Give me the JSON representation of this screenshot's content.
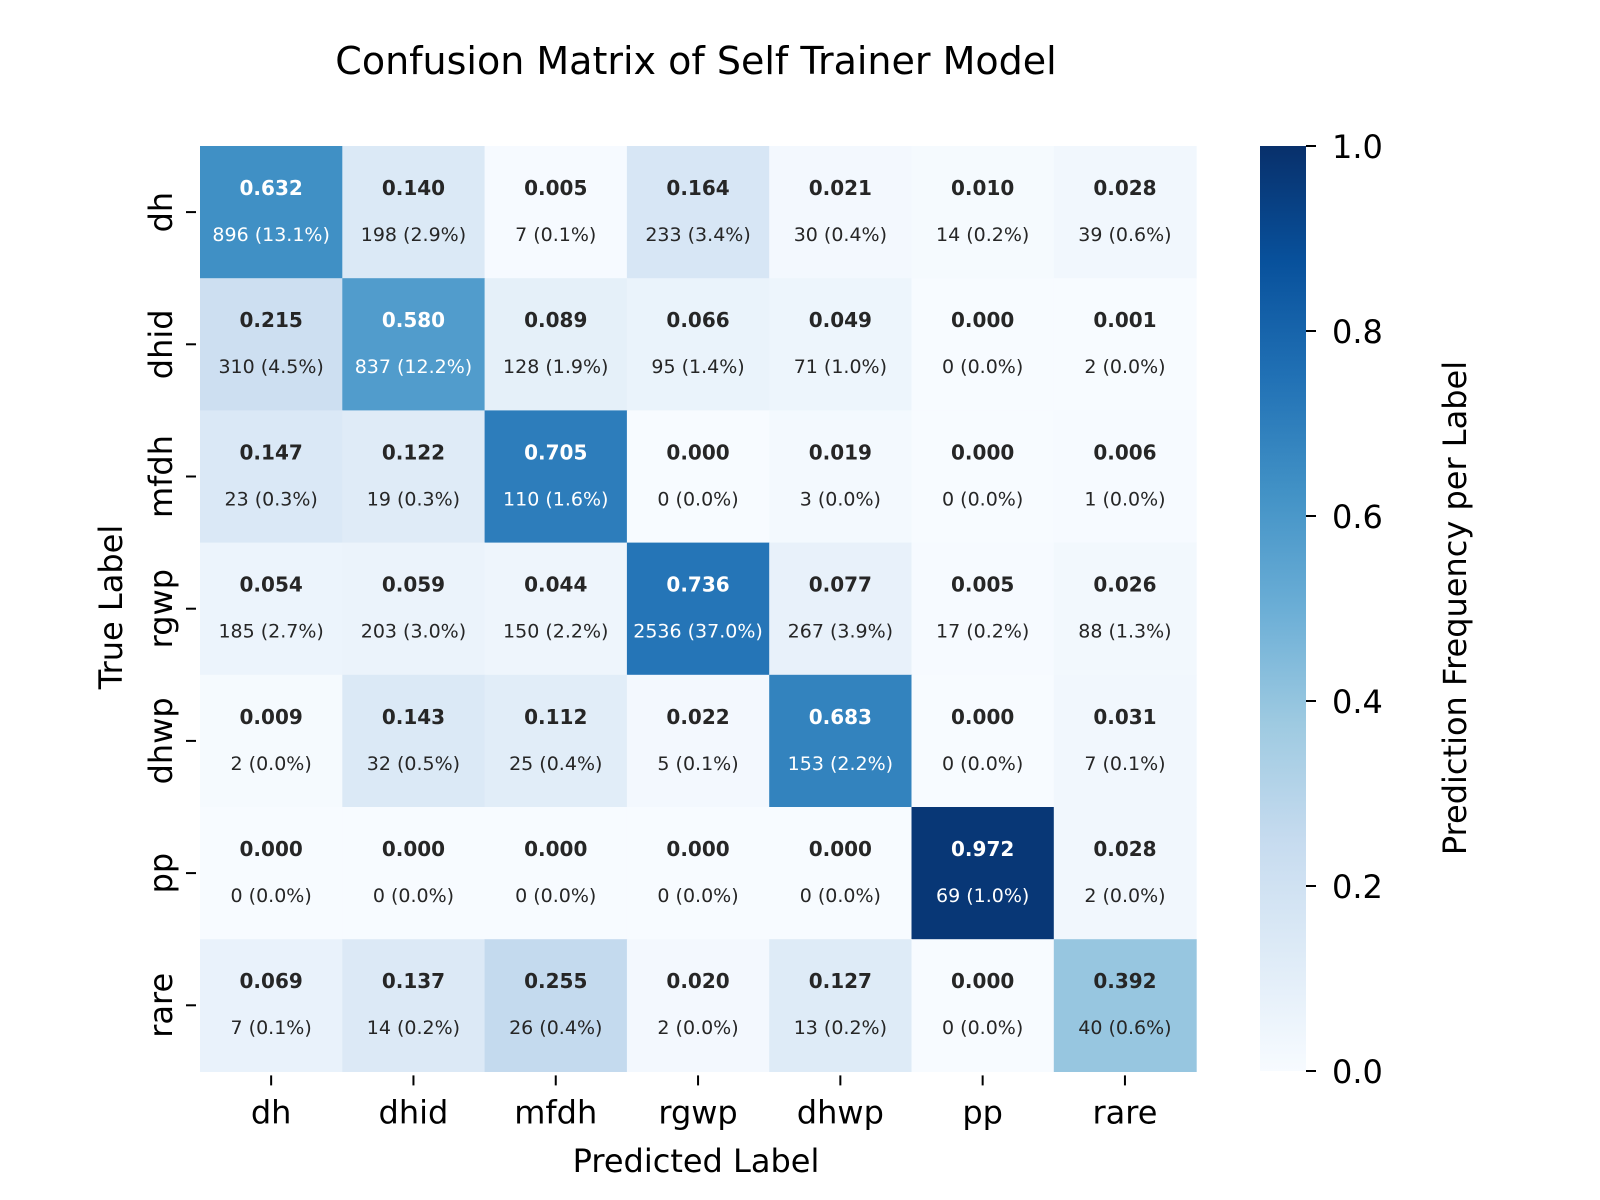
{
  "chart_data": {
    "type": "heatmap",
    "title": "Confusion Matrix of Self Trainer Model",
    "xlabel": "Predicted Label",
    "ylabel": "True Label",
    "x_categories": [
      "dh",
      "dhid",
      "mfdh",
      "rgwp",
      "dhwp",
      "pp",
      "rare"
    ],
    "y_categories": [
      "dh",
      "dhid",
      "mfdh",
      "rgwp",
      "dhwp",
      "pp",
      "rare"
    ],
    "values": [
      [
        0.632,
        0.14,
        0.005,
        0.164,
        0.021,
        0.01,
        0.028
      ],
      [
        0.215,
        0.58,
        0.089,
        0.066,
        0.049,
        0.0,
        0.001
      ],
      [
        0.147,
        0.122,
        0.705,
        0.0,
        0.019,
        0.0,
        0.006
      ],
      [
        0.054,
        0.059,
        0.044,
        0.736,
        0.077,
        0.005,
        0.026
      ],
      [
        0.009,
        0.143,
        0.112,
        0.022,
        0.683,
        0.0,
        0.031
      ],
      [
        0.0,
        0.0,
        0.0,
        0.0,
        0.0,
        0.972,
        0.028
      ],
      [
        0.069,
        0.137,
        0.255,
        0.02,
        0.127,
        0.0,
        0.392
      ]
    ],
    "value_labels": [
      [
        "0.632",
        "0.140",
        "0.005",
        "0.164",
        "0.021",
        "0.010",
        "0.028"
      ],
      [
        "0.215",
        "0.580",
        "0.089",
        "0.066",
        "0.049",
        "0.000",
        "0.001"
      ],
      [
        "0.147",
        "0.122",
        "0.705",
        "0.000",
        "0.019",
        "0.000",
        "0.006"
      ],
      [
        "0.054",
        "0.059",
        "0.044",
        "0.736",
        "0.077",
        "0.005",
        "0.026"
      ],
      [
        "0.009",
        "0.143",
        "0.112",
        "0.022",
        "0.683",
        "0.000",
        "0.031"
      ],
      [
        "0.000",
        "0.000",
        "0.000",
        "0.000",
        "0.000",
        "0.972",
        "0.028"
      ],
      [
        "0.069",
        "0.137",
        "0.255",
        "0.020",
        "0.127",
        "0.000",
        "0.392"
      ]
    ],
    "count_labels": [
      [
        "896 (13.1%)",
        "198 (2.9%)",
        "7 (0.1%)",
        "233 (3.4%)",
        "30 (0.4%)",
        "14 (0.2%)",
        "39 (0.6%)"
      ],
      [
        "310 (4.5%)",
        "837 (12.2%)",
        "128 (1.9%)",
        "95 (1.4%)",
        "71 (1.0%)",
        "0 (0.0%)",
        "2 (0.0%)"
      ],
      [
        "23 (0.3%)",
        "19 (0.3%)",
        "110 (1.6%)",
        "0 (0.0%)",
        "3 (0.0%)",
        "0 (0.0%)",
        "1 (0.0%)"
      ],
      [
        "185 (2.7%)",
        "203 (3.0%)",
        "150 (2.2%)",
        "2536 (37.0%)",
        "267 (3.9%)",
        "17 (0.2%)",
        "88 (1.3%)"
      ],
      [
        "2 (0.0%)",
        "32 (0.5%)",
        "25 (0.4%)",
        "5 (0.1%)",
        "153 (2.2%)",
        "0 (0.0%)",
        "7 (0.1%)"
      ],
      [
        "0 (0.0%)",
        "0 (0.0%)",
        "0 (0.0%)",
        "0 (0.0%)",
        "0 (0.0%)",
        "69 (1.0%)",
        "2 (0.0%)"
      ],
      [
        "7 (0.1%)",
        "14 (0.2%)",
        "26 (0.4%)",
        "2 (0.0%)",
        "13 (0.2%)",
        "0 (0.0%)",
        "40 (0.6%)"
      ]
    ],
    "colorbar": {
      "label": "Prediction Frequency per Label",
      "range": [
        0.0,
        1.0
      ],
      "ticks": [
        "0.0",
        "0.2",
        "0.4",
        "0.6",
        "0.8",
        "1.0"
      ],
      "colormap": "Blues"
    }
  }
}
